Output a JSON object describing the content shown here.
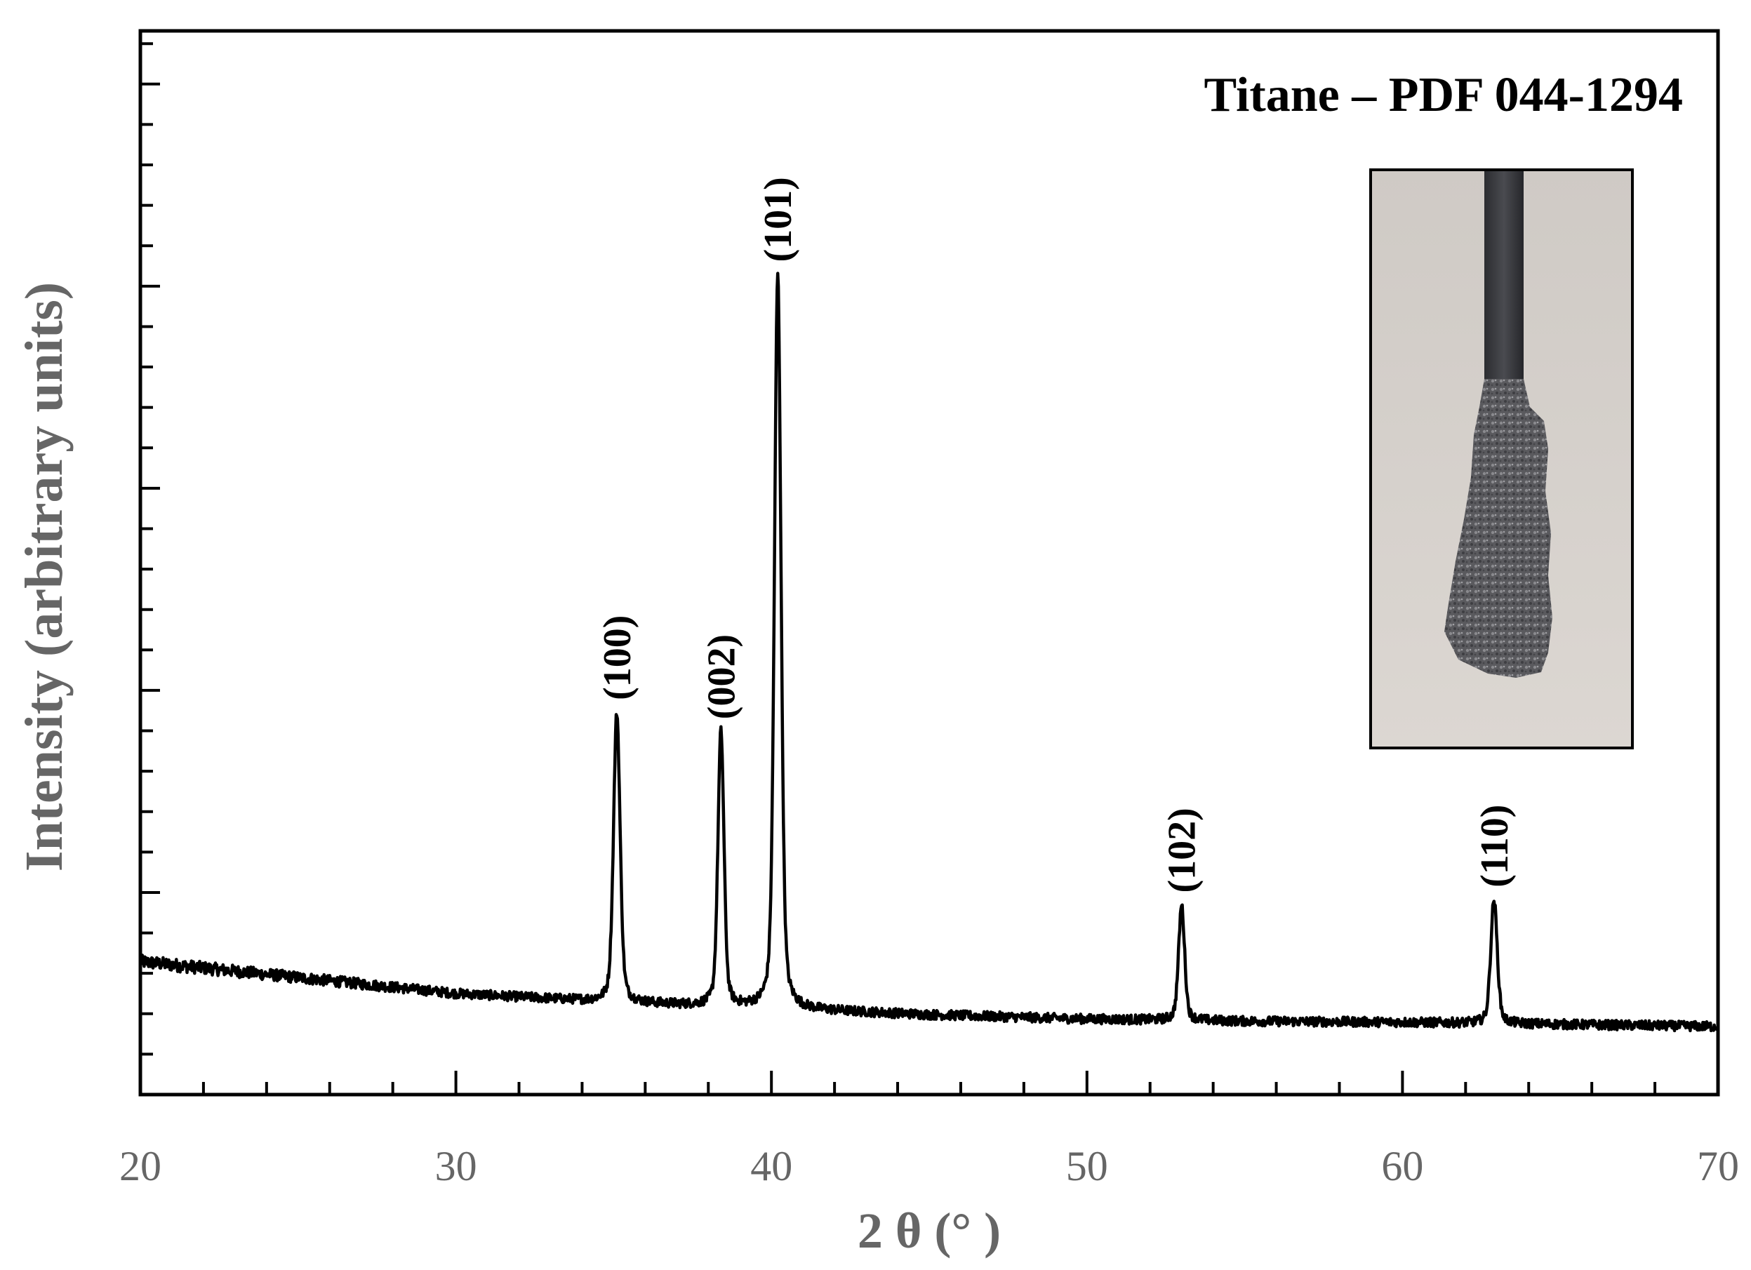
{
  "chart_data": {
    "type": "line",
    "title": "",
    "xlabel": "2 θ (° )",
    "ylabel": "Intensity (arbitrary units)",
    "xlim": [
      20,
      70
    ],
    "ylim": [
      0,
      100
    ],
    "x_major_ticks": [
      20,
      30,
      40,
      50,
      60,
      70
    ],
    "x_tick_labels": [
      "20",
      "30",
      "40",
      "50",
      "60",
      "70"
    ],
    "x_minor_step": 2,
    "y_major_step": 19,
    "y_minor_step": 3.8,
    "y_tick_labels_shown": false,
    "grid": false,
    "legend": "none",
    "annotation": "Titane – PDF 044-1294",
    "baseline": {
      "x": [
        20,
        25,
        30,
        35,
        40,
        45,
        50,
        55,
        60,
        65,
        70
      ],
      "y": [
        12.5,
        11.0,
        9.5,
        8.7,
        8.1,
        7.5,
        7.1,
        6.9,
        6.8,
        6.6,
        6.4
      ]
    },
    "peaks": [
      {
        "label": "(100)",
        "x": 35.1,
        "height": 27.2,
        "width": 0.13
      },
      {
        "label": "(002)",
        "x": 38.4,
        "height": 25.8,
        "width": 0.12
      },
      {
        "label": "(101)",
        "x": 40.2,
        "height": 69.0,
        "width": 0.13
      },
      {
        "label": "(102)",
        "x": 53.0,
        "height": 10.8,
        "width": 0.12
      },
      {
        "label": "(110)",
        "x": 62.9,
        "height": 11.6,
        "width": 0.13
      }
    ],
    "line_color": "#000000",
    "inset": {
      "description_icon": "photo-sample-rod",
      "background": "#d8d4d0"
    }
  }
}
